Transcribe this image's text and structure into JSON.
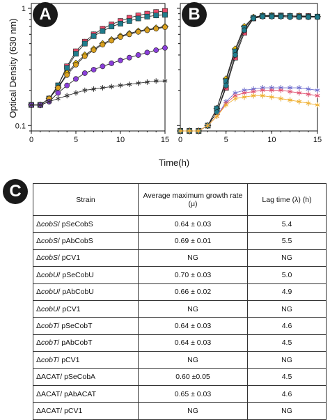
{
  "figure": {
    "panel_labels": [
      "A",
      "B",
      "C"
    ],
    "y_axis_label": "Optical Density (630 nm)",
    "x_axis_label": "Time(h)"
  },
  "chart_data": [
    {
      "panel": "A",
      "type": "line",
      "y_scale": "log",
      "xlim": [
        0,
        15
      ],
      "ylim": [
        0.09,
        1.1
      ],
      "x_ticks": [
        0,
        5,
        10,
        15
      ],
      "y_ticks": [
        {
          "value": 1,
          "label": "1"
        },
        {
          "value": 0.1,
          "label": "0.1"
        }
      ],
      "x": [
        0,
        1,
        2,
        3,
        4,
        5,
        6,
        7,
        8,
        9,
        10,
        11,
        12,
        13,
        14,
        15
      ],
      "series": [
        {
          "marker": "square",
          "color": "#e84a6a",
          "values": [
            0.15,
            0.15,
            0.17,
            0.22,
            0.32,
            0.43,
            0.52,
            0.6,
            0.67,
            0.73,
            0.78,
            0.83,
            0.87,
            0.9,
            0.93,
            0.95
          ]
        },
        {
          "marker": "square",
          "color": "#1f7c8c",
          "values": [
            0.15,
            0.15,
            0.17,
            0.22,
            0.31,
            0.41,
            0.5,
            0.58,
            0.64,
            0.7,
            0.74,
            0.78,
            0.82,
            0.85,
            0.87,
            0.88
          ]
        },
        {
          "marker": "diamond",
          "color": "#f2c200",
          "values": [
            0.15,
            0.15,
            0.17,
            0.21,
            0.28,
            0.34,
            0.4,
            0.45,
            0.5,
            0.54,
            0.58,
            0.61,
            0.64,
            0.66,
            0.68,
            0.7
          ]
        },
        {
          "marker": "circle",
          "color": "#d9a020",
          "values": [
            0.15,
            0.15,
            0.17,
            0.21,
            0.27,
            0.33,
            0.39,
            0.44,
            0.49,
            0.53,
            0.57,
            0.6,
            0.63,
            0.65,
            0.67,
            0.69
          ]
        },
        {
          "marker": "circle",
          "color": "#8a3fd9",
          "values": [
            0.15,
            0.15,
            0.16,
            0.19,
            0.22,
            0.25,
            0.28,
            0.3,
            0.32,
            0.34,
            0.36,
            0.38,
            0.4,
            0.42,
            0.44,
            0.46
          ]
        },
        {
          "marker": "asterisk",
          "color": "#333333",
          "values": [
            0.15,
            0.15,
            0.16,
            0.17,
            0.18,
            0.19,
            0.2,
            0.205,
            0.21,
            0.215,
            0.22,
            0.225,
            0.23,
            0.235,
            0.24,
            0.24
          ]
        }
      ]
    },
    {
      "panel": "B",
      "type": "line",
      "y_scale": "log",
      "xlim": [
        0,
        15
      ],
      "ylim": [
        0.09,
        1.1
      ],
      "x_ticks": [
        0,
        5,
        10,
        15
      ],
      "x": [
        0,
        1,
        2,
        3,
        4,
        5,
        6,
        7,
        8,
        9,
        10,
        11,
        12,
        13,
        14,
        15
      ],
      "series": [
        {
          "marker": "square",
          "color": "#e84a6a",
          "values": [
            0.09,
            0.09,
            0.09,
            0.1,
            0.13,
            0.21,
            0.38,
            0.62,
            0.82,
            0.86,
            0.87,
            0.87,
            0.86,
            0.86,
            0.86,
            0.85
          ]
        },
        {
          "marker": "diamond",
          "color": "#f2c200",
          "values": [
            0.09,
            0.09,
            0.09,
            0.1,
            0.14,
            0.25,
            0.45,
            0.7,
            0.84,
            0.87,
            0.87,
            0.86,
            0.86,
            0.86,
            0.85,
            0.85
          ]
        },
        {
          "marker": "square",
          "color": "#1f7c8c",
          "values": [
            0.09,
            0.09,
            0.09,
            0.1,
            0.14,
            0.24,
            0.43,
            0.68,
            0.83,
            0.86,
            0.86,
            0.86,
            0.86,
            0.85,
            0.85,
            0.85
          ]
        },
        {
          "marker": "circle",
          "color": "#1f7c8c",
          "values": [
            0.09,
            0.09,
            0.09,
            0.1,
            0.13,
            0.22,
            0.4,
            0.65,
            0.82,
            0.85,
            0.85,
            0.85,
            0.84,
            0.84,
            0.84,
            0.84
          ]
        },
        {
          "marker": "asterisk",
          "color": "#7070d0",
          "values": [
            0.09,
            0.09,
            0.09,
            0.1,
            0.12,
            0.16,
            0.19,
            0.2,
            0.205,
            0.21,
            0.21,
            0.21,
            0.21,
            0.21,
            0.205,
            0.2
          ]
        },
        {
          "marker": "asterisk",
          "color": "#e05070",
          "values": [
            0.09,
            0.09,
            0.09,
            0.1,
            0.12,
            0.155,
            0.18,
            0.19,
            0.195,
            0.2,
            0.2,
            0.2,
            0.195,
            0.19,
            0.185,
            0.18
          ]
        },
        {
          "marker": "asterisk",
          "color": "#f0b030",
          "values": [
            0.09,
            0.09,
            0.09,
            0.1,
            0.12,
            0.15,
            0.17,
            0.175,
            0.18,
            0.18,
            0.175,
            0.17,
            0.165,
            0.16,
            0.155,
            0.15
          ]
        }
      ]
    },
    {
      "panel": "C",
      "type": "table",
      "headers": [
        "Strain",
        "Average maximum growth rate (μ)",
        "Lag time (λ) (h)"
      ],
      "rows": [
        {
          "strain_prefix": "Δ",
          "gene": "cobS",
          "plasmid": "/ pSeCobS",
          "rate": "0.64 ± 0.03",
          "lag": "5.4"
        },
        {
          "strain_prefix": "Δ",
          "gene": "cobS",
          "plasmid": "/ pAbCobS",
          "rate": "0.69 ± 0.01",
          "lag": "5.5"
        },
        {
          "strain_prefix": "Δ",
          "gene": "cobS",
          "plasmid": "/ pCV1",
          "rate": "NG",
          "lag": "NG"
        },
        {
          "strain_prefix": "Δ",
          "gene": "cobU",
          "plasmid": "/ pSeCobU",
          "rate": "0.70 ± 0.03",
          "lag": "5.0"
        },
        {
          "strain_prefix": "Δ",
          "gene": "cobU",
          "plasmid": "/ pAbCobU",
          "rate": "0.66 ± 0.02",
          "lag": "4.9"
        },
        {
          "strain_prefix": "Δ",
          "gene": "cobU",
          "plasmid": "/ pCV1",
          "rate": "NG",
          "lag": "NG"
        },
        {
          "strain_prefix": "Δ",
          "gene": "cobT",
          "plasmid": "/ pSeCobT",
          "rate": "0.64 ± 0.03",
          "lag": "4.6"
        },
        {
          "strain_prefix": "Δ",
          "gene": "cobT",
          "plasmid": "/ pAbCobT",
          "rate": "0.64 ± 0.03",
          "lag": "4.5"
        },
        {
          "strain_prefix": "Δ",
          "gene": "cobT",
          "plasmid": "/ pCV1",
          "rate": "NG",
          "lag": "NG"
        },
        {
          "strain_prefix": "ΔACAT",
          "gene": "",
          "plasmid": "/ pSeCobA",
          "rate": "0.60 ±0.05",
          "lag": "4.5"
        },
        {
          "strain_prefix": "ΔACAT",
          "gene": "",
          "plasmid": "/ pAbACAT",
          "rate": "0.65 ± 0.03",
          "lag": "4.6"
        },
        {
          "strain_prefix": "ΔACAT",
          "gene": "",
          "plasmid": "/ pCV1",
          "rate": "NG",
          "lag": "NG"
        }
      ]
    }
  ]
}
